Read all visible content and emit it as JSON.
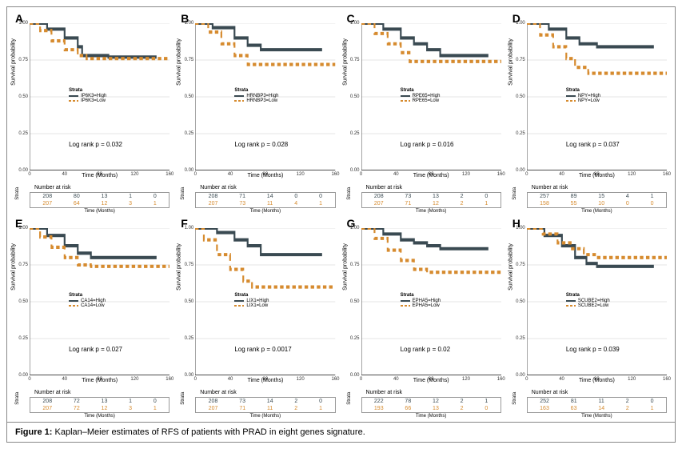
{
  "caption_bold": "Figure 1:",
  "caption_text": " Kaplan–Meier estimates of RFS of patients with PRAD in eight genes signature.",
  "colors": {
    "high": "#3a4a52",
    "low": "#d68b2f",
    "grid": "#e6e6e6",
    "axis": "#333333"
  },
  "common": {
    "ylabel": "Survival probability",
    "xlabel": "Time (Months)",
    "legend_title": "Strata",
    "risk_title": "Number at risk",
    "risk_xlabel": "Time (Months)",
    "risk_strata": "Strata",
    "xticks": [
      0,
      40,
      80,
      120,
      160
    ],
    "yticks": [
      "0.00",
      "0.25",
      "0.50",
      "0.75",
      "1.00"
    ]
  },
  "panels": [
    {
      "label": "A",
      "gene": "IP6K3",
      "legend_high": "IP6K3=High",
      "legend_low": "IP6K3=Low",
      "logrank": "Log rank p = 0.032",
      "high_curve": [
        [
          0,
          1.0
        ],
        [
          20,
          0.96
        ],
        [
          40,
          0.9
        ],
        [
          55,
          0.84
        ],
        [
          60,
          0.78
        ],
        [
          72,
          0.78
        ],
        [
          80,
          0.78
        ],
        [
          90,
          0.77
        ],
        [
          145,
          0.77
        ]
      ],
      "low_curve": [
        [
          0,
          1.0
        ],
        [
          12,
          0.95
        ],
        [
          25,
          0.88
        ],
        [
          40,
          0.82
        ],
        [
          55,
          0.78
        ],
        [
          65,
          0.76
        ],
        [
          80,
          0.76
        ],
        [
          160,
          0.76
        ]
      ],
      "risk_high": [
        208,
        80,
        13,
        1,
        0
      ],
      "risk_low": [
        207,
        64,
        12,
        3,
        1
      ]
    },
    {
      "label": "B",
      "gene": "HRNBP3",
      "legend_high": "HRNBP3=High",
      "legend_low": "HRNBP3=Low",
      "logrank": "Log rank p = 0.028",
      "high_curve": [
        [
          0,
          1.0
        ],
        [
          20,
          0.97
        ],
        [
          45,
          0.9
        ],
        [
          60,
          0.85
        ],
        [
          75,
          0.82
        ],
        [
          90,
          0.82
        ],
        [
          145,
          0.82
        ]
      ],
      "low_curve": [
        [
          0,
          1.0
        ],
        [
          15,
          0.94
        ],
        [
          30,
          0.86
        ],
        [
          45,
          0.78
        ],
        [
          60,
          0.72
        ],
        [
          70,
          0.72
        ],
        [
          160,
          0.72
        ]
      ],
      "risk_high": [
        208,
        71,
        14,
        0,
        0
      ],
      "risk_low": [
        207,
        73,
        11,
        4,
        1
      ]
    },
    {
      "label": "C",
      "gene": "RPE65",
      "legend_high": "RPE65=High",
      "legend_low": "RPE65=Low",
      "logrank": "Log rank p = 0.016",
      "high_curve": [
        [
          0,
          1.0
        ],
        [
          25,
          0.96
        ],
        [
          45,
          0.9
        ],
        [
          60,
          0.86
        ],
        [
          75,
          0.82
        ],
        [
          90,
          0.78
        ],
        [
          145,
          0.78
        ]
      ],
      "low_curve": [
        [
          0,
          1.0
        ],
        [
          15,
          0.93
        ],
        [
          30,
          0.86
        ],
        [
          45,
          0.8
        ],
        [
          55,
          0.74
        ],
        [
          70,
          0.74
        ],
        [
          160,
          0.74
        ]
      ],
      "risk_high": [
        208,
        73,
        13,
        2,
        0
      ],
      "risk_low": [
        207,
        71,
        12,
        2,
        1
      ]
    },
    {
      "label": "D",
      "gene": "NPY",
      "legend_high": "NPY=High",
      "legend_low": "NPY=Low",
      "logrank": "Log rank p = 0.037",
      "high_curve": [
        [
          0,
          1.0
        ],
        [
          25,
          0.96
        ],
        [
          45,
          0.9
        ],
        [
          60,
          0.86
        ],
        [
          80,
          0.84
        ],
        [
          145,
          0.84
        ]
      ],
      "low_curve": [
        [
          0,
          1.0
        ],
        [
          15,
          0.92
        ],
        [
          30,
          0.84
        ],
        [
          45,
          0.76
        ],
        [
          55,
          0.7
        ],
        [
          70,
          0.66
        ],
        [
          90,
          0.66
        ],
        [
          160,
          0.66
        ]
      ],
      "risk_high": [
        257,
        89,
        15,
        4,
        1
      ],
      "risk_low": [
        158,
        55,
        10,
        0,
        0
      ]
    },
    {
      "label": "E",
      "gene": "CA14",
      "legend_high": "CA14=High",
      "legend_low": "CA14=Low",
      "logrank": "Log rank p = 0.027",
      "high_curve": [
        [
          0,
          1.0
        ],
        [
          20,
          0.95
        ],
        [
          40,
          0.88
        ],
        [
          55,
          0.83
        ],
        [
          70,
          0.8
        ],
        [
          85,
          0.8
        ],
        [
          145,
          0.8
        ]
      ],
      "low_curve": [
        [
          0,
          1.0
        ],
        [
          12,
          0.94
        ],
        [
          25,
          0.87
        ],
        [
          40,
          0.8
        ],
        [
          55,
          0.75
        ],
        [
          70,
          0.74
        ],
        [
          160,
          0.74
        ]
      ],
      "risk_high": [
        208,
        72,
        13,
        1,
        0
      ],
      "risk_low": [
        207,
        72,
        12,
        3,
        1
      ]
    },
    {
      "label": "F",
      "gene": "LIX1",
      "legend_high": "LIX1=High",
      "legend_low": "LIX1=Low",
      "logrank": "Log rank p = 0.0017",
      "high_curve": [
        [
          0,
          1.0
        ],
        [
          25,
          0.97
        ],
        [
          45,
          0.92
        ],
        [
          60,
          0.88
        ],
        [
          75,
          0.82
        ],
        [
          90,
          0.82
        ],
        [
          145,
          0.82
        ]
      ],
      "low_curve": [
        [
          0,
          1.0
        ],
        [
          10,
          0.92
        ],
        [
          25,
          0.82
        ],
        [
          40,
          0.72
        ],
        [
          55,
          0.64
        ],
        [
          65,
          0.6
        ],
        [
          85,
          0.6
        ],
        [
          160,
          0.6
        ]
      ],
      "risk_high": [
        208,
        73,
        14,
        2,
        0
      ],
      "risk_low": [
        207,
        71,
        11,
        2,
        1
      ]
    },
    {
      "label": "G",
      "gene": "EPHA5",
      "legend_high": "EPHA5=High",
      "legend_low": "EPHA5=Low",
      "logrank": "Log rank p = 0.02",
      "high_curve": [
        [
          0,
          1.0
        ],
        [
          25,
          0.96
        ],
        [
          45,
          0.92
        ],
        [
          60,
          0.9
        ],
        [
          75,
          0.88
        ],
        [
          90,
          0.86
        ],
        [
          145,
          0.86
        ]
      ],
      "low_curve": [
        [
          0,
          1.0
        ],
        [
          15,
          0.93
        ],
        [
          30,
          0.85
        ],
        [
          45,
          0.78
        ],
        [
          60,
          0.72
        ],
        [
          75,
          0.7
        ],
        [
          90,
          0.7
        ],
        [
          160,
          0.7
        ]
      ],
      "risk_high": [
        222,
        78,
        12,
        2,
        1
      ],
      "risk_low": [
        193,
        66,
        13,
        2,
        0
      ]
    },
    {
      "label": "H",
      "gene": "SCUBE2",
      "legend_high": "SCUBE2=High",
      "legend_low": "SCUBE2=Low",
      "logrank": "Log rank p = 0.039",
      "high_curve": [
        [
          0,
          1.0
        ],
        [
          20,
          0.95
        ],
        [
          40,
          0.88
        ],
        [
          55,
          0.8
        ],
        [
          68,
          0.76
        ],
        [
          80,
          0.74
        ],
        [
          145,
          0.74
        ]
      ],
      "low_curve": [
        [
          0,
          1.0
        ],
        [
          18,
          0.96
        ],
        [
          35,
          0.9
        ],
        [
          50,
          0.86
        ],
        [
          65,
          0.82
        ],
        [
          80,
          0.8
        ],
        [
          160,
          0.8
        ]
      ],
      "risk_high": [
        252,
        81,
        11,
        2,
        0
      ],
      "risk_low": [
        163,
        63,
        14,
        2,
        1
      ]
    }
  ]
}
